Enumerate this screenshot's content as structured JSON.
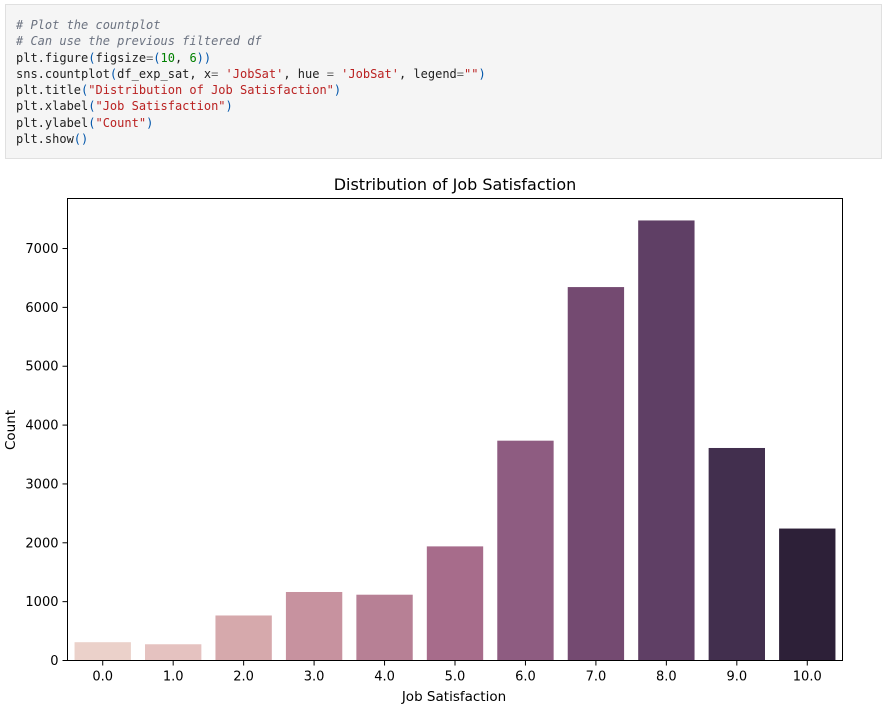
{
  "code_cell": {
    "lines": [
      [
        {
          "t": "# Plot the countplot",
          "c": "comment"
        }
      ],
      [
        {
          "t": "# Can use the previous filtered df",
          "c": "comment"
        }
      ],
      [
        {
          "t": "plt.figure"
        },
        {
          "t": "(",
          "c": "paren"
        },
        {
          "t": "figsize"
        },
        {
          "t": "=",
          "c": "op"
        },
        {
          "t": "(",
          "c": "paren"
        },
        {
          "t": "10",
          "c": "num"
        },
        {
          "t": ", "
        },
        {
          "t": "6",
          "c": "num"
        },
        {
          "t": "))",
          "c": "paren"
        }
      ],
      [
        {
          "t": "sns.countplot"
        },
        {
          "t": "(",
          "c": "paren"
        },
        {
          "t": "df_exp_sat, x"
        },
        {
          "t": "=",
          "c": "op"
        },
        {
          "t": " "
        },
        {
          "t": "'JobSat'",
          "c": "str"
        },
        {
          "t": ", hue "
        },
        {
          "t": "=",
          "c": "op"
        },
        {
          "t": " "
        },
        {
          "t": "'JobSat'",
          "c": "str"
        },
        {
          "t": ", legend"
        },
        {
          "t": "=",
          "c": "op"
        },
        {
          "t": "\"\"",
          "c": "str"
        },
        {
          "t": ")",
          "c": "paren"
        }
      ],
      [
        {
          "t": "plt.title"
        },
        {
          "t": "(",
          "c": "paren"
        },
        {
          "t": "\"Distribution of Job Satisfaction\"",
          "c": "str"
        },
        {
          "t": ")",
          "c": "paren"
        }
      ],
      [
        {
          "t": "plt.xlabel"
        },
        {
          "t": "(",
          "c": "paren"
        },
        {
          "t": "\"Job Satisfaction\"",
          "c": "str"
        },
        {
          "t": ")",
          "c": "paren"
        }
      ],
      [
        {
          "t": "plt.ylabel"
        },
        {
          "t": "(",
          "c": "paren"
        },
        {
          "t": "\"Count\"",
          "c": "str"
        },
        {
          "t": ")",
          "c": "paren"
        }
      ],
      [
        {
          "t": "plt.show"
        },
        {
          "t": "()",
          "c": "paren"
        }
      ]
    ]
  },
  "chart_data": {
    "type": "bar",
    "title": "Distribution of Job Satisfaction",
    "xlabel": "Job Satisfaction",
    "ylabel": "Count",
    "categories": [
      "0.0",
      "1.0",
      "2.0",
      "3.0",
      "4.0",
      "5.0",
      "6.0",
      "7.0",
      "8.0",
      "9.0",
      "10.0"
    ],
    "values": [
      311,
      276,
      765,
      1164,
      1118,
      1939,
      3735,
      6345,
      7477,
      3611,
      2242
    ],
    "yticks": [
      0,
      1000,
      2000,
      3000,
      4000,
      5000,
      6000,
      7000
    ],
    "ylim": [
      0,
      7850
    ],
    "grid": false,
    "colors": [
      "#ebd1ca",
      "#e5c2c0",
      "#d6a9ac",
      "#c7929f",
      "#b78095",
      "#a76c8b",
      "#8e5c81",
      "#744a71",
      "#5f3f65",
      "#422f4e",
      "#2d2038"
    ]
  }
}
